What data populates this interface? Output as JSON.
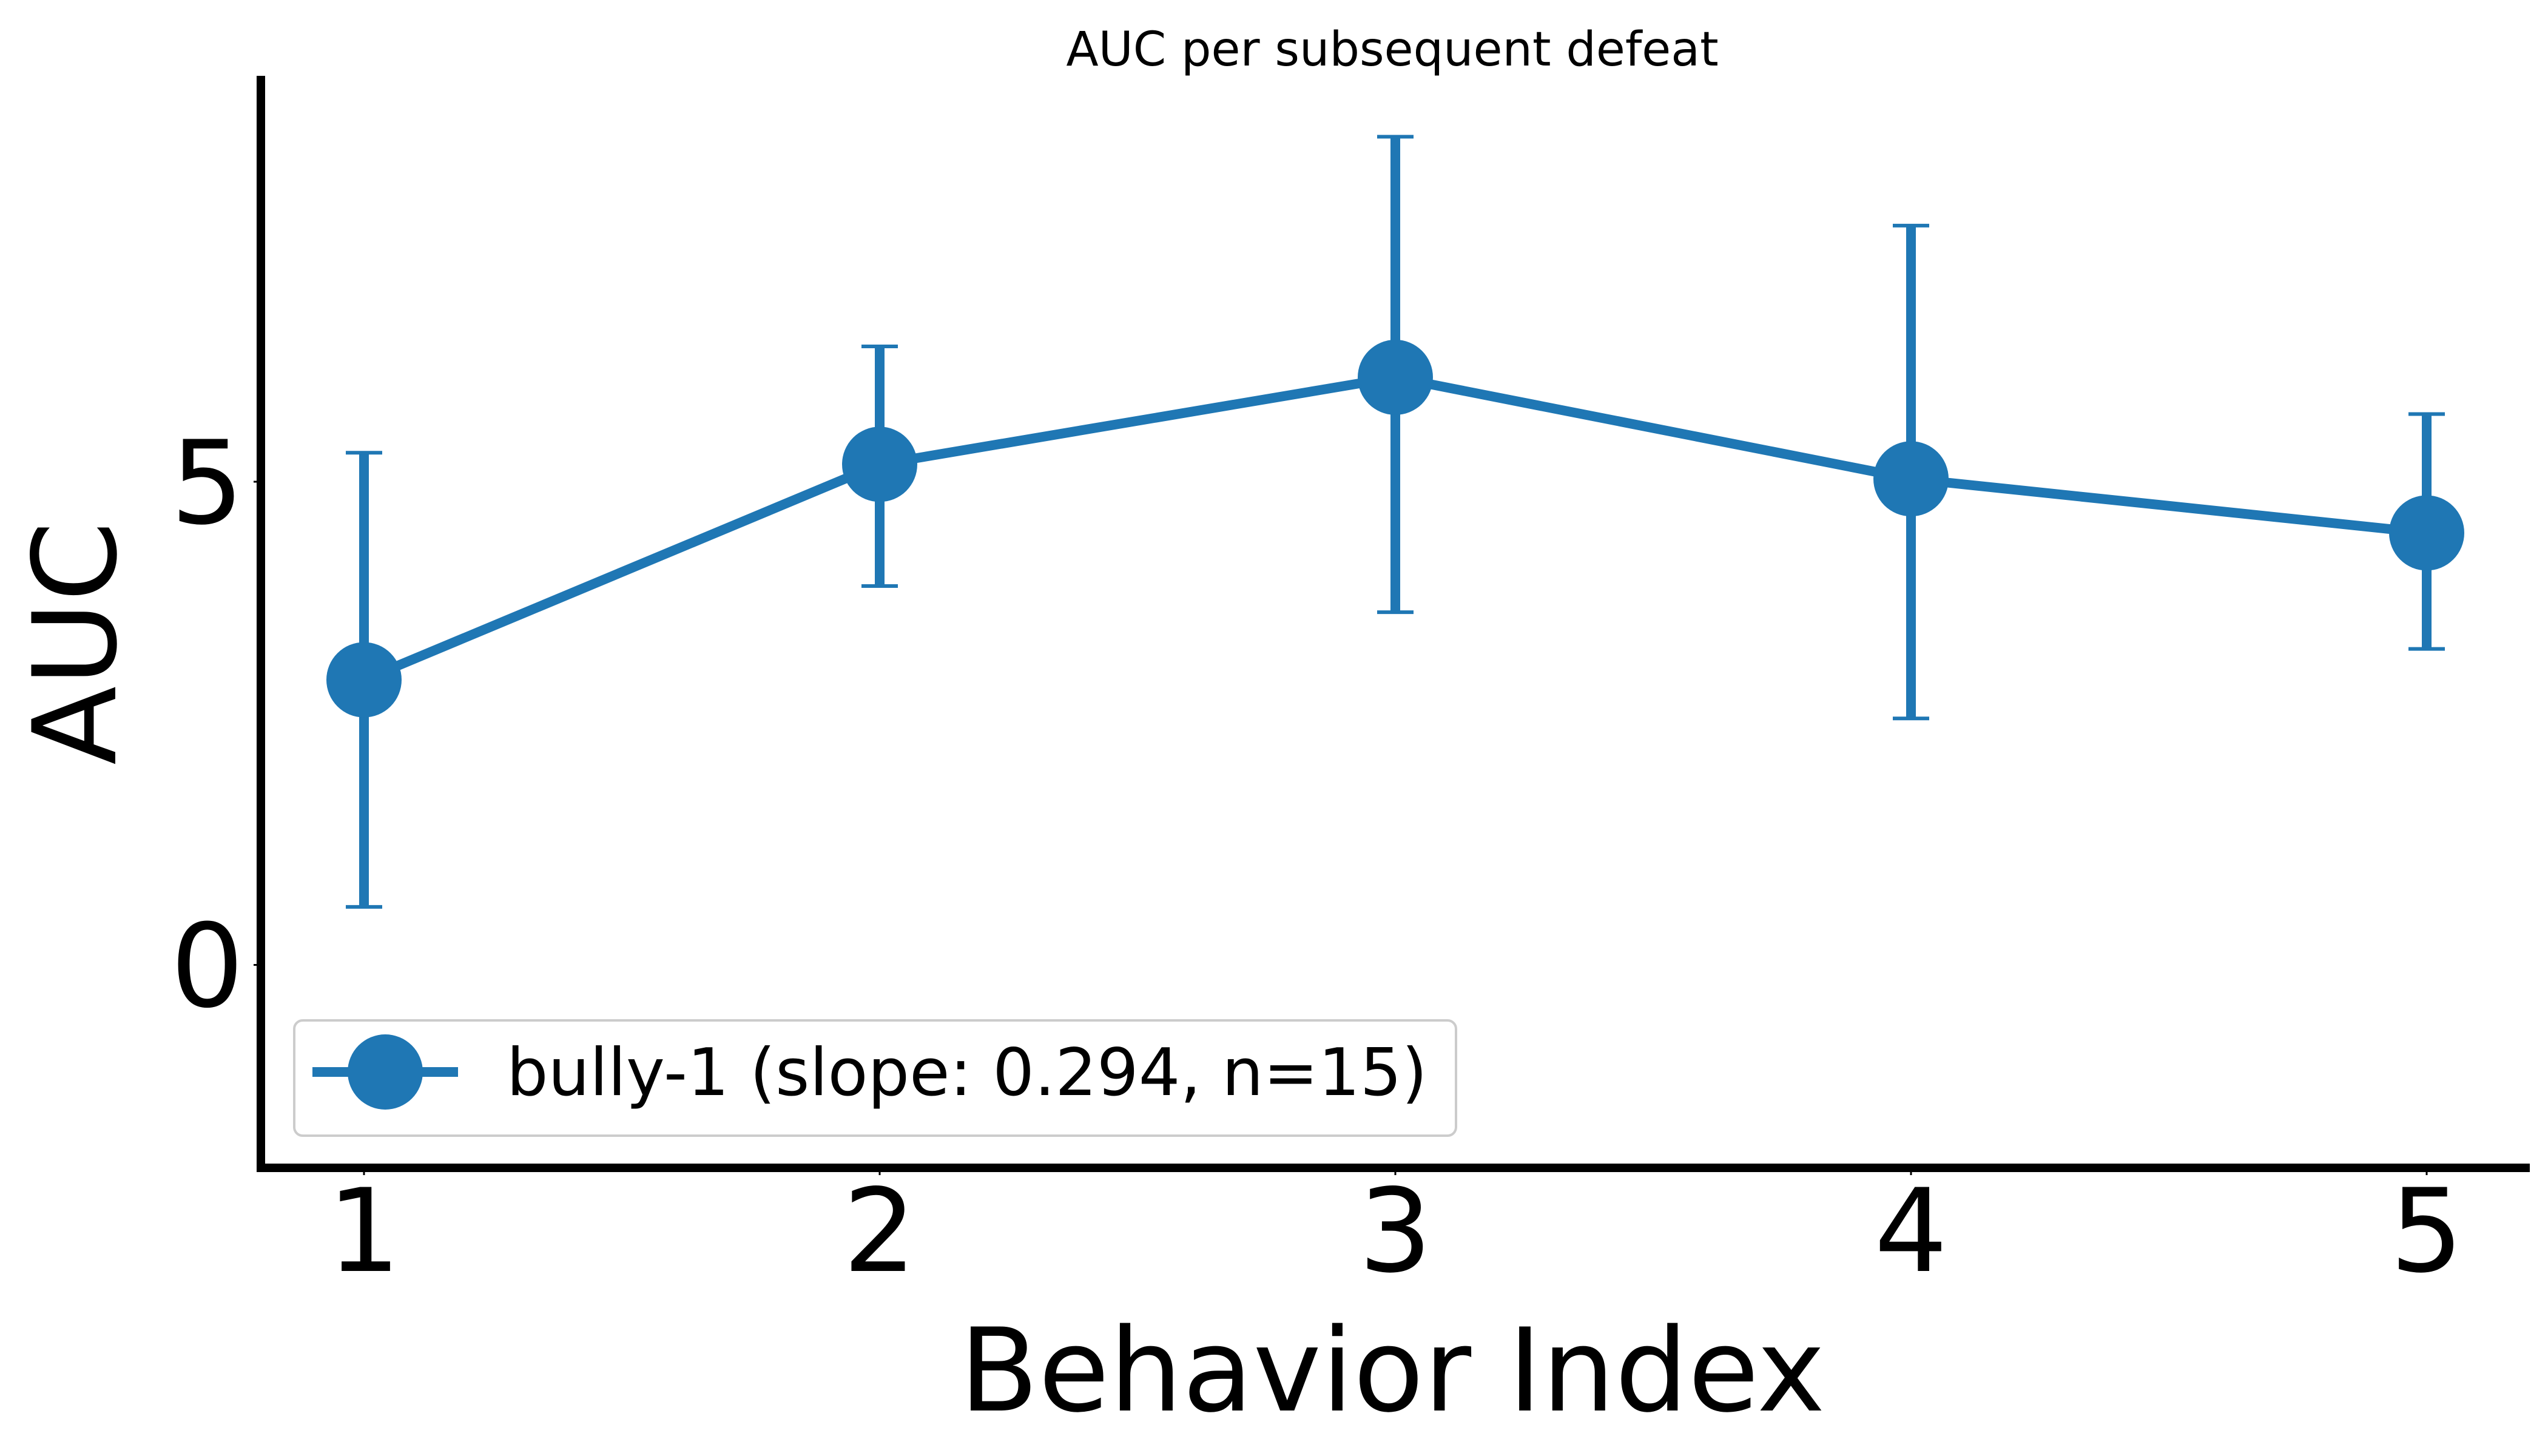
{
  "chart_data": {
    "type": "line",
    "title": "AUC per subsequent defeat",
    "xlabel": "Behavior Index",
    "ylabel": "AUC",
    "x": [
      1,
      2,
      3,
      4,
      5
    ],
    "xticks": [
      1,
      2,
      3,
      4,
      5
    ],
    "yticks": [
      0,
      5
    ],
    "xlim": [
      0.8,
      5.2
    ],
    "ylim": [
      -2.1,
      9.2
    ],
    "grid": false,
    "legend_position": "lower-left",
    "series": [
      {
        "name": "bully-1 (slope: 0.294, n=15)",
        "color": "#1f77b4",
        "values": [
          2.95,
          5.18,
          6.08,
          5.03,
          4.47
        ],
        "err_low": [
          0.6,
          3.92,
          3.65,
          2.55,
          3.27
        ],
        "err_high": [
          5.3,
          6.4,
          8.57,
          7.65,
          5.7
        ]
      }
    ]
  }
}
